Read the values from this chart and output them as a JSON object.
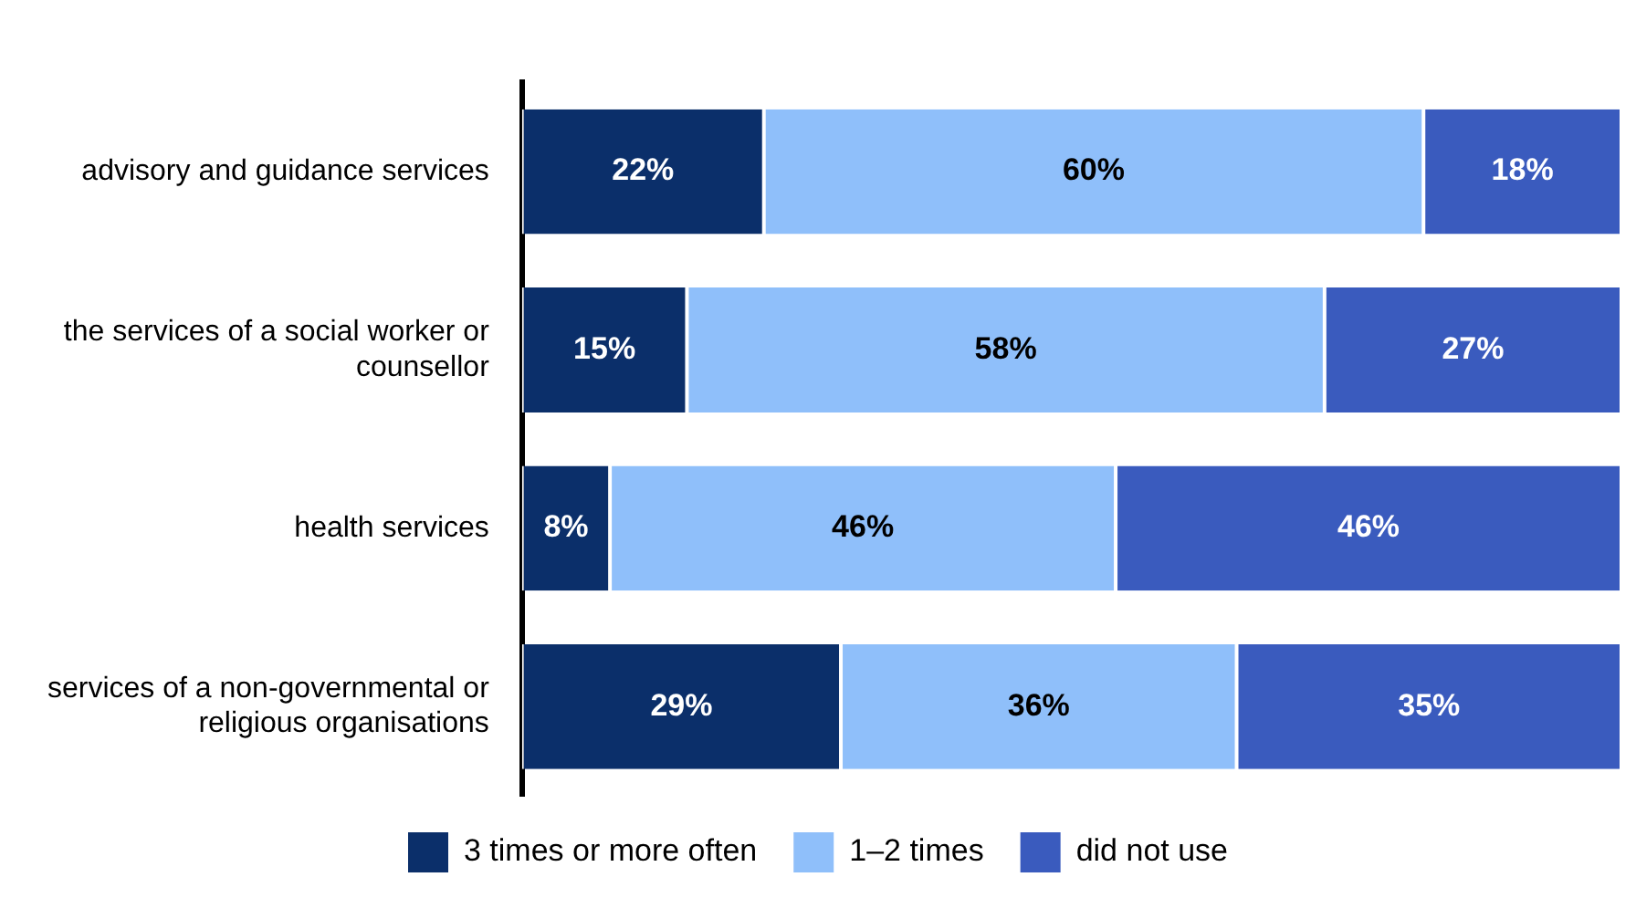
{
  "chart_data": {
    "type": "bar",
    "orientation": "horizontal",
    "stacked": true,
    "categories": [
      "advisory and guidance services",
      "the services of a social worker or counsellor",
      "health services",
      "services of a non-governmental or religious organisations"
    ],
    "series": [
      {
        "name": "3 times or more often",
        "color": "#0b2f6a",
        "values": [
          22,
          15,
          8,
          29
        ],
        "value_labels": [
          "22%",
          "15%",
          "8%",
          "29%"
        ]
      },
      {
        "name": "1–2 times",
        "color": "#8fbffa",
        "values": [
          60,
          58,
          46,
          36
        ],
        "value_labels": [
          "60%",
          "58%",
          "46%",
          "36%"
        ]
      },
      {
        "name": "did not use",
        "color": "#3a5bbe",
        "values": [
          18,
          27,
          46,
          35
        ],
        "value_labels": [
          "18%",
          "27%",
          "46%",
          "35%"
        ]
      }
    ],
    "tick_labels": "y",
    "grid": false,
    "legend": "bottom"
  }
}
